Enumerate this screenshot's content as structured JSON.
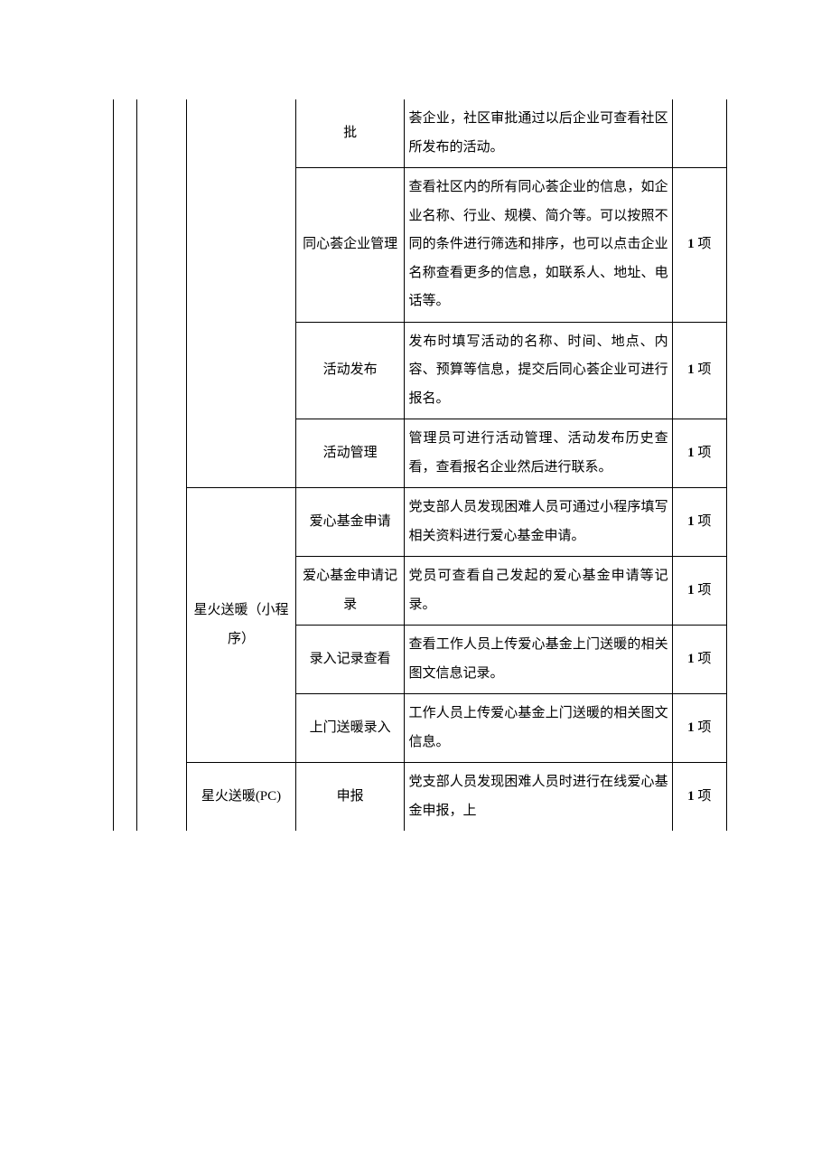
{
  "rows": [
    {
      "col3": "批",
      "col4": "荟企业，社区审批通过以后企业可查看社区所发布的活动。",
      "col5": ""
    },
    {
      "col3": "同心荟企业管理",
      "col4": "查看社区内的所有同心荟企业的信息，如企业名称、行业、规模、简介等。可以按照不同的条件进行筛选和排序，也可以点击企业名称查看更多的信息，如联系人、地址、电话等。",
      "col5_num": "1",
      "col5_unit": " 项"
    },
    {
      "col3": "活动发布",
      "col4": "发布时填写活动的名称、时间、地点、内容、预算等信息，提交后同心荟企业可进行报名。",
      "col5_num": "1",
      "col5_unit": " 项"
    },
    {
      "col3": "活动管理",
      "col4": "管理员可进行活动管理、活动发布历史查看，查看报名企业然后进行联系。",
      "col5_num": "1",
      "col5_unit": " 项"
    },
    {
      "col2": "星火送暖（小程序）",
      "sub": [
        {
          "col3": "爱心基金申请",
          "col4": "党支部人员发现困难人员可通过小程序填写相关资料进行爱心基金申请。",
          "col5_num": "1",
          "col5_unit": " 项"
        },
        {
          "col3": "爱心基金申请记录",
          "col4": "党员可查看自己发起的爱心基金申请等记录。",
          "col5_num": "1",
          "col5_unit": " 项"
        },
        {
          "col3": "录入记录查看",
          "col4": "查看工作人员上传爱心基金上门送暖的相关图文信息记录。",
          "col5_num": "1",
          "col5_unit": " 项"
        },
        {
          "col3": "上门送暖录入",
          "col4": "工作人员上传爱心基金上门送暖的相关图文信息。",
          "col5_num": "1",
          "col5_unit": " 项"
        }
      ]
    },
    {
      "col2": "星火送暖(PC)",
      "col3": "申报",
      "col4": "党支部人员发现困难人员时进行在线爱心基金申报，上",
      "col5_num": "1",
      "col5_unit": " 项"
    }
  ],
  "colors": {
    "border": "#000000",
    "text": "#000000",
    "background": "#ffffff"
  },
  "font_size": 15,
  "line_height": 2.1
}
